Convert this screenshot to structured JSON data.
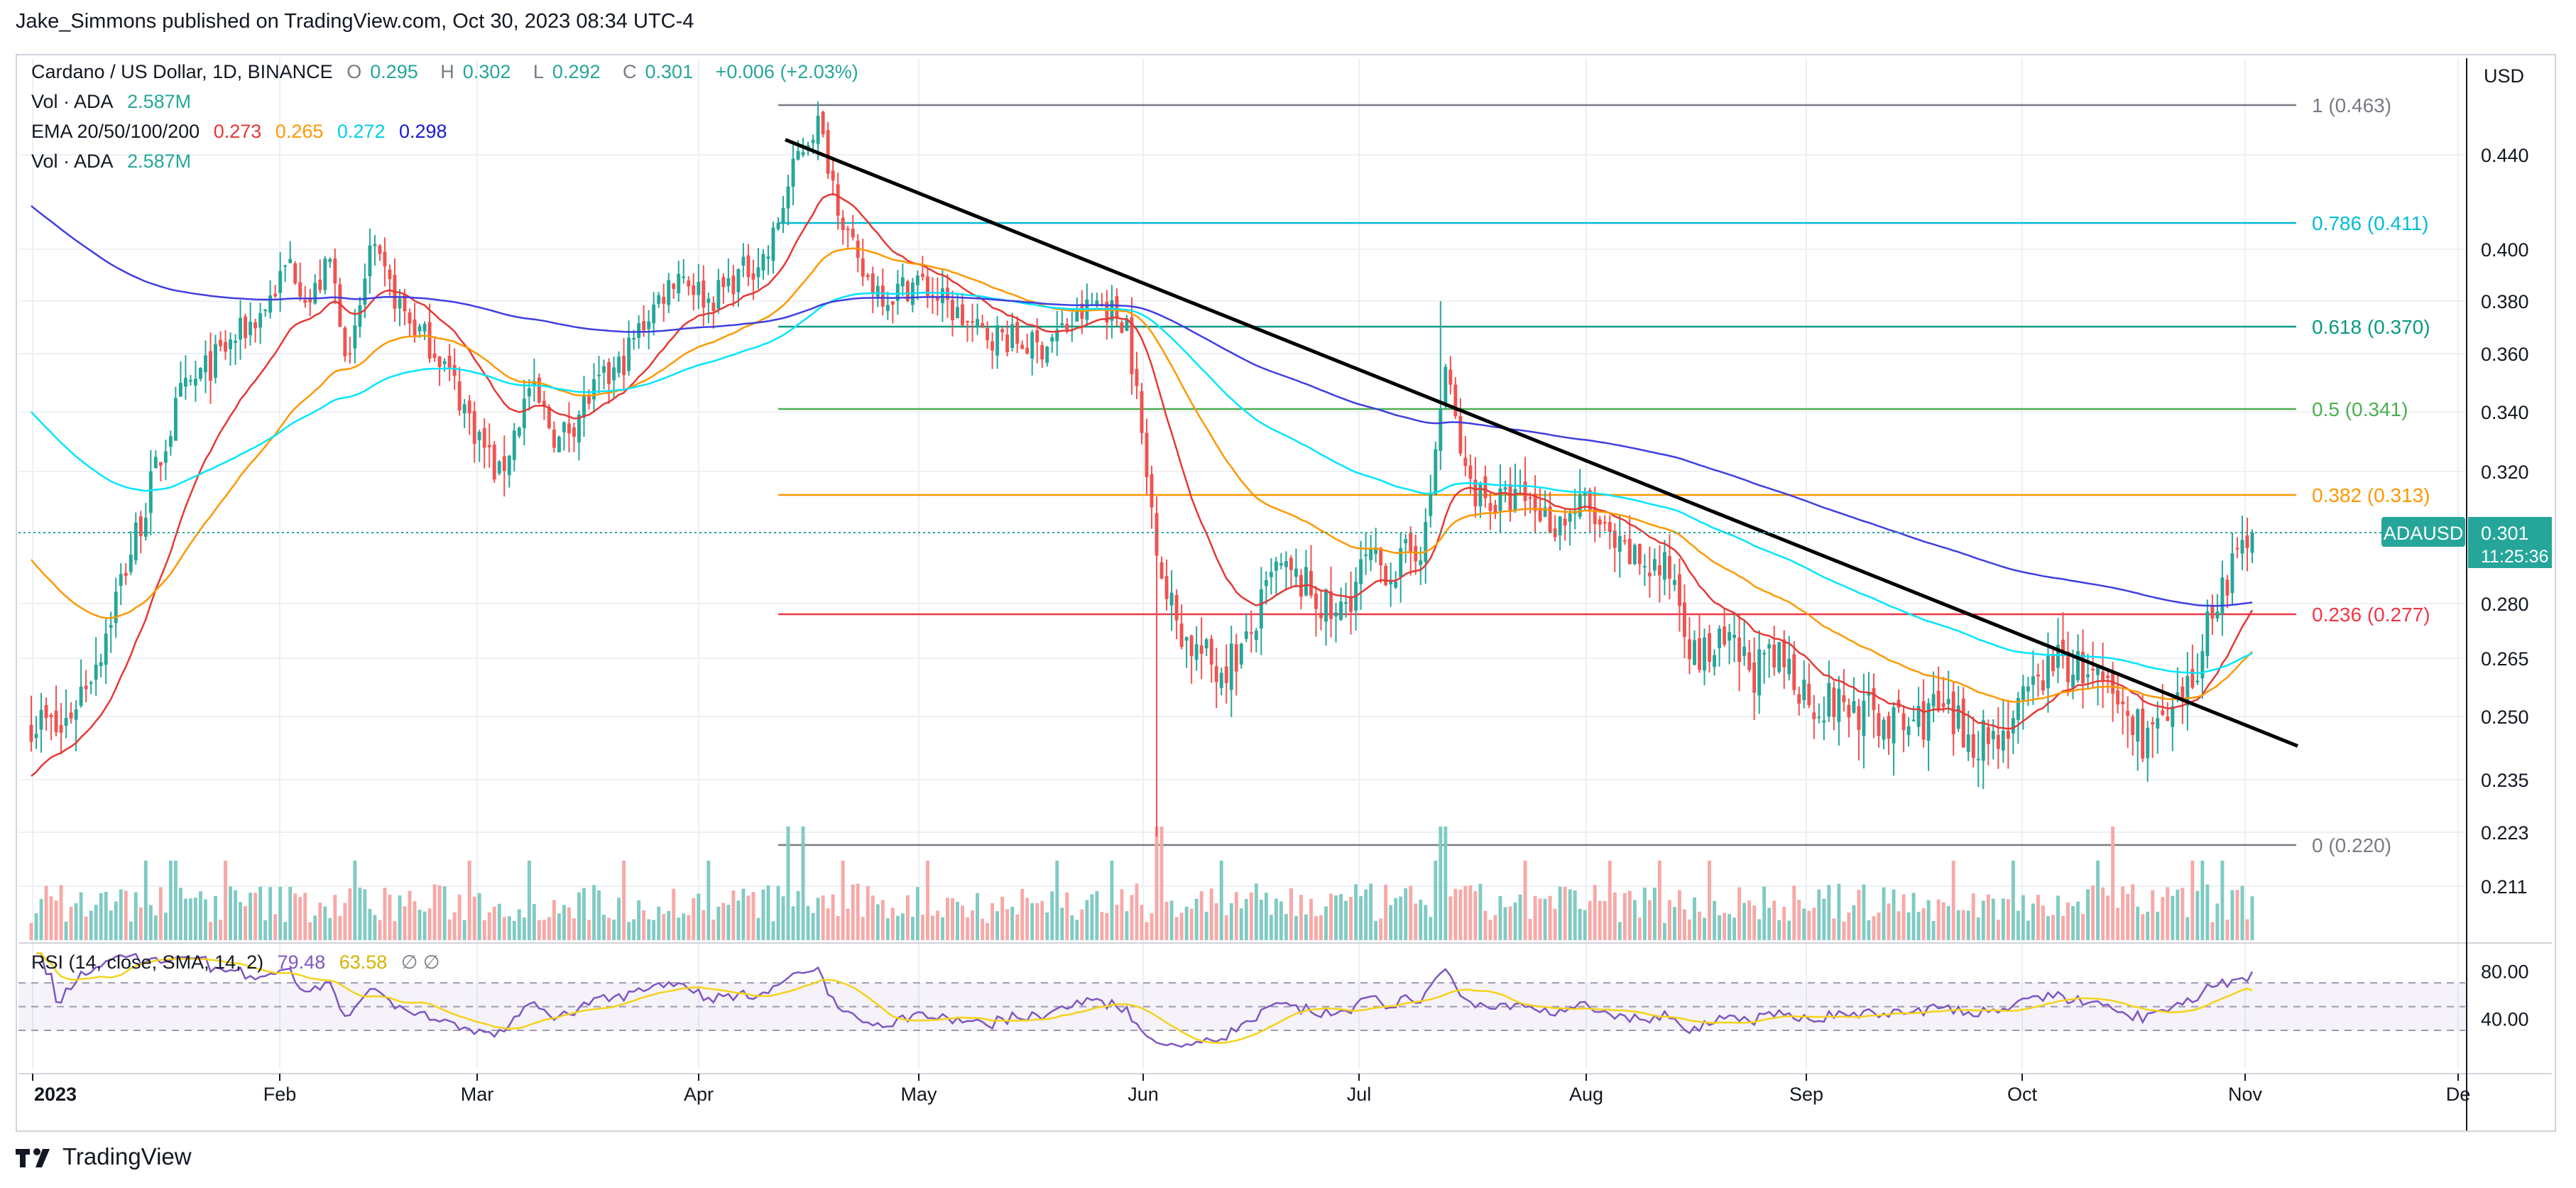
{
  "header": {
    "published": "Jake_Simmons published on TradingView.com, Oct 30, 2023 08:34 UTC-4"
  },
  "legend": {
    "symbol": "Cardano / US Dollar, 1D, BINANCE",
    "o_label": "O",
    "o": "0.295",
    "h_label": "H",
    "h": "0.302",
    "l_label": "L",
    "l": "0.292",
    "c_label": "C",
    "c": "0.301",
    "change": "+0.006 (+2.03%)",
    "vol_label": "Vol · ADA",
    "vol": "2.587M",
    "ema_label": "EMA 20/50/100/200",
    "ema20": "0.273",
    "ema50": "0.265",
    "ema100": "0.272",
    "ema200": "0.298",
    "vol2_label": "Vol · ADA",
    "vol2": "2.587M"
  },
  "currency": "USD",
  "price_tag": {
    "symbol": "ADAUSD",
    "price": "0.301",
    "countdown": "11:25:36"
  },
  "rsi_legend": {
    "label": "RSI (14, close, SMA, 14, 2)",
    "rsi": "79.48",
    "sma": "63.58",
    "icons": "∅ ∅"
  },
  "colors": {
    "up": "#26a69a",
    "down": "#ef5350",
    "ema20": "#e53935",
    "ema50": "#ff9800",
    "ema100": "#00e5ff",
    "ema200": "#3f3fe0",
    "rsi": "#7e57c2",
    "rsi_sma": "#f5d31a",
    "price_line": "#26a69a"
  },
  "chart_data": [
    {
      "type": "candlestick",
      "title": "Cardano / US Dollar, 1D, BINANCE",
      "x_ticks": [
        "2023",
        "Feb",
        "Mar",
        "Apr",
        "May",
        "Jun",
        "Jul",
        "Aug",
        "Sep",
        "Oct",
        "Nov",
        "De"
      ],
      "y_ticks": [
        "0.440",
        "0.400",
        "0.380",
        "0.360",
        "0.340",
        "0.320",
        "0.280",
        "0.265",
        "0.250",
        "0.235",
        "0.223",
        "0.211"
      ],
      "ylim": [
        0.205,
        0.47
      ],
      "series": [
        {
          "name": "EMA 20",
          "last": 0.273
        },
        {
          "name": "EMA 50",
          "last": 0.265
        },
        {
          "name": "EMA 100",
          "last": 0.272
        },
        {
          "name": "EMA 200",
          "last": 0.298
        }
      ],
      "fib_levels": [
        {
          "label": "1 (0.463)",
          "value": 0.463,
          "color": "#787b86"
        },
        {
          "label": "0.786 (0.411)",
          "value": 0.411,
          "color": "#00bcd4"
        },
        {
          "label": "0.618 (0.370)",
          "value": 0.37,
          "color": "#089981"
        },
        {
          "label": "0.5 (0.341)",
          "value": 0.341,
          "color": "#4caf50"
        },
        {
          "label": "0.382 (0.313)",
          "value": 0.313,
          "color": "#ff9800"
        },
        {
          "label": "0.236 (0.277)",
          "value": 0.277,
          "color": "#f23645"
        },
        {
          "label": "0 (0.220)",
          "value": 0.22,
          "color": "#787b86"
        }
      ],
      "trendline": {
        "from": [
          "Apr",
          0.447
        ],
        "to": [
          "Nov",
          0.243
        ]
      },
      "last_price": 0.301
    },
    {
      "type": "line",
      "title": "RSI (14, close, SMA, 14, 2)",
      "y_ticks": [
        "80.00",
        "40.00"
      ],
      "bands": [
        70,
        50,
        30
      ],
      "series": [
        {
          "name": "RSI",
          "last": 79.48
        },
        {
          "name": "SMA",
          "last": 63.58
        }
      ]
    }
  ],
  "footer": {
    "brand": "TradingView"
  }
}
